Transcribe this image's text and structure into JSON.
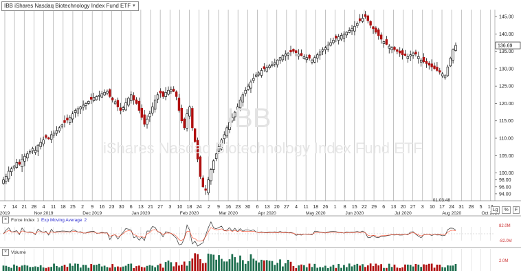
{
  "chart_data": {
    "type": "candlestick",
    "title": "IBB iShares Nasdaq Biotechnology Index Fund ETF",
    "watermark_symbol": "IBB",
    "watermark_name": "iShares Nasdaq Biotechnology Index Fund ETF",
    "ylim": [
      92,
      147
    ],
    "y_ticks": [
      94.0,
      96.0,
      98.0,
      100.0,
      105.0,
      110.0,
      115.0,
      120.0,
      125.0,
      130.0,
      135.0,
      140.0,
      145.0
    ],
    "last_price": "136.69",
    "current_time": "01:03:48",
    "date_tick_labels": [
      "7",
      "14",
      "21",
      "28",
      "4",
      "11",
      "18",
      "25",
      "2",
      "9",
      "16",
      "23",
      "30",
      "6",
      "13",
      "21",
      "27",
      "3",
      "10",
      "18",
      "24",
      "2",
      "9",
      "16",
      "23",
      "30",
      "6",
      "13",
      "20",
      "27",
      "4",
      "11",
      "18",
      "26",
      "1",
      "8",
      "15",
      "22",
      "29",
      "6",
      "13",
      "20",
      "27",
      "3",
      "10",
      "17",
      "24",
      "31",
      "28",
      "5",
      "12"
    ],
    "month_labels": [
      "2019",
      "Nov 2019",
      "Dec 2019",
      "Jan 2020",
      "Feb 2020",
      "Mar 2020",
      "Apr 2020",
      "May 2020",
      "Jun 2020",
      "Jul 2020",
      "Aug 2020",
      "Oct 2020"
    ],
    "closes": [
      98.0,
      99.0,
      100.5,
      101.2,
      102.0,
      103.0,
      102.5,
      104.0,
      104.8,
      105.5,
      106.2,
      107.0,
      106.5,
      108.0,
      108.8,
      109.5,
      110.2,
      109.8,
      111.0,
      111.5,
      112.2,
      113.0,
      113.8,
      114.5,
      115.2,
      116.0,
      117.0,
      118.0,
      118.5,
      119.0,
      119.5,
      120.0,
      120.6,
      121.2,
      121.8,
      122.0,
      122.4,
      122.8,
      123.2,
      123.5,
      122.0,
      121.0,
      120.5,
      119.0,
      118.0,
      118.8,
      120.2,
      121.5,
      122.5,
      121.0,
      120.0,
      118.0,
      116.0,
      114.0,
      115.5,
      117.0,
      119.0,
      121.0,
      122.5,
      123.0,
      122.0,
      123.2,
      123.8,
      124.0,
      123.5,
      122.0,
      118.0,
      115.0,
      113.0,
      117.0,
      119.0,
      113.0,
      109.0,
      104.0,
      99.0,
      96.0,
      95.0,
      98.0,
      101.0,
      103.5,
      105.5,
      107.5,
      109.5,
      111.0,
      113.0,
      114.5,
      116.0,
      117.5,
      119.0,
      121.0,
      122.5,
      123.8,
      125.0,
      126.2,
      127.2,
      128.2,
      128.8,
      129.5,
      130.0,
      130.3,
      130.8,
      131.2,
      131.8,
      132.5,
      133.2,
      133.8,
      134.2,
      134.5,
      134.8,
      135.0,
      134.6,
      134.2,
      133.8,
      133.5,
      133.2,
      133.0,
      132.5,
      133.2,
      134.0,
      134.8,
      135.5,
      136.0,
      136.8,
      137.5,
      138.2,
      138.8,
      139.2,
      139.6,
      140.0,
      140.5,
      141.0,
      141.5,
      142.2,
      143.0,
      143.8,
      144.5,
      145.0,
      143.8,
      142.5,
      141.5,
      140.5,
      139.5,
      138.5,
      137.8,
      137.0,
      136.5,
      136.0,
      135.5,
      135.0,
      134.5,
      134.0,
      133.8,
      133.5,
      134.0,
      134.5,
      134.2,
      133.5,
      132.5,
      132.0,
      131.5,
      131.0,
      130.5,
      130.0,
      129.5,
      129.0,
      128.5,
      128.0,
      130.5,
      133.0,
      135.5,
      136.7
    ],
    "indicator_1": {
      "name": "Force Index",
      "period": "1",
      "overlay": "Exp Moving Average",
      "overlay_period": "2",
      "tick_labels": [
        "82.0M",
        "-82.0M"
      ]
    },
    "indicator_2": {
      "name": "Volume",
      "tick_label": "2.0M"
    },
    "colors": {
      "up": "#ffffff",
      "down": "#b01010",
      "wick": "#111111",
      "force": "#444444",
      "ema": "#ff4a2a",
      "vol_up": "#1d6e4e",
      "vol_down": "#b01010",
      "grid": "#a9a9a9"
    }
  }
}
